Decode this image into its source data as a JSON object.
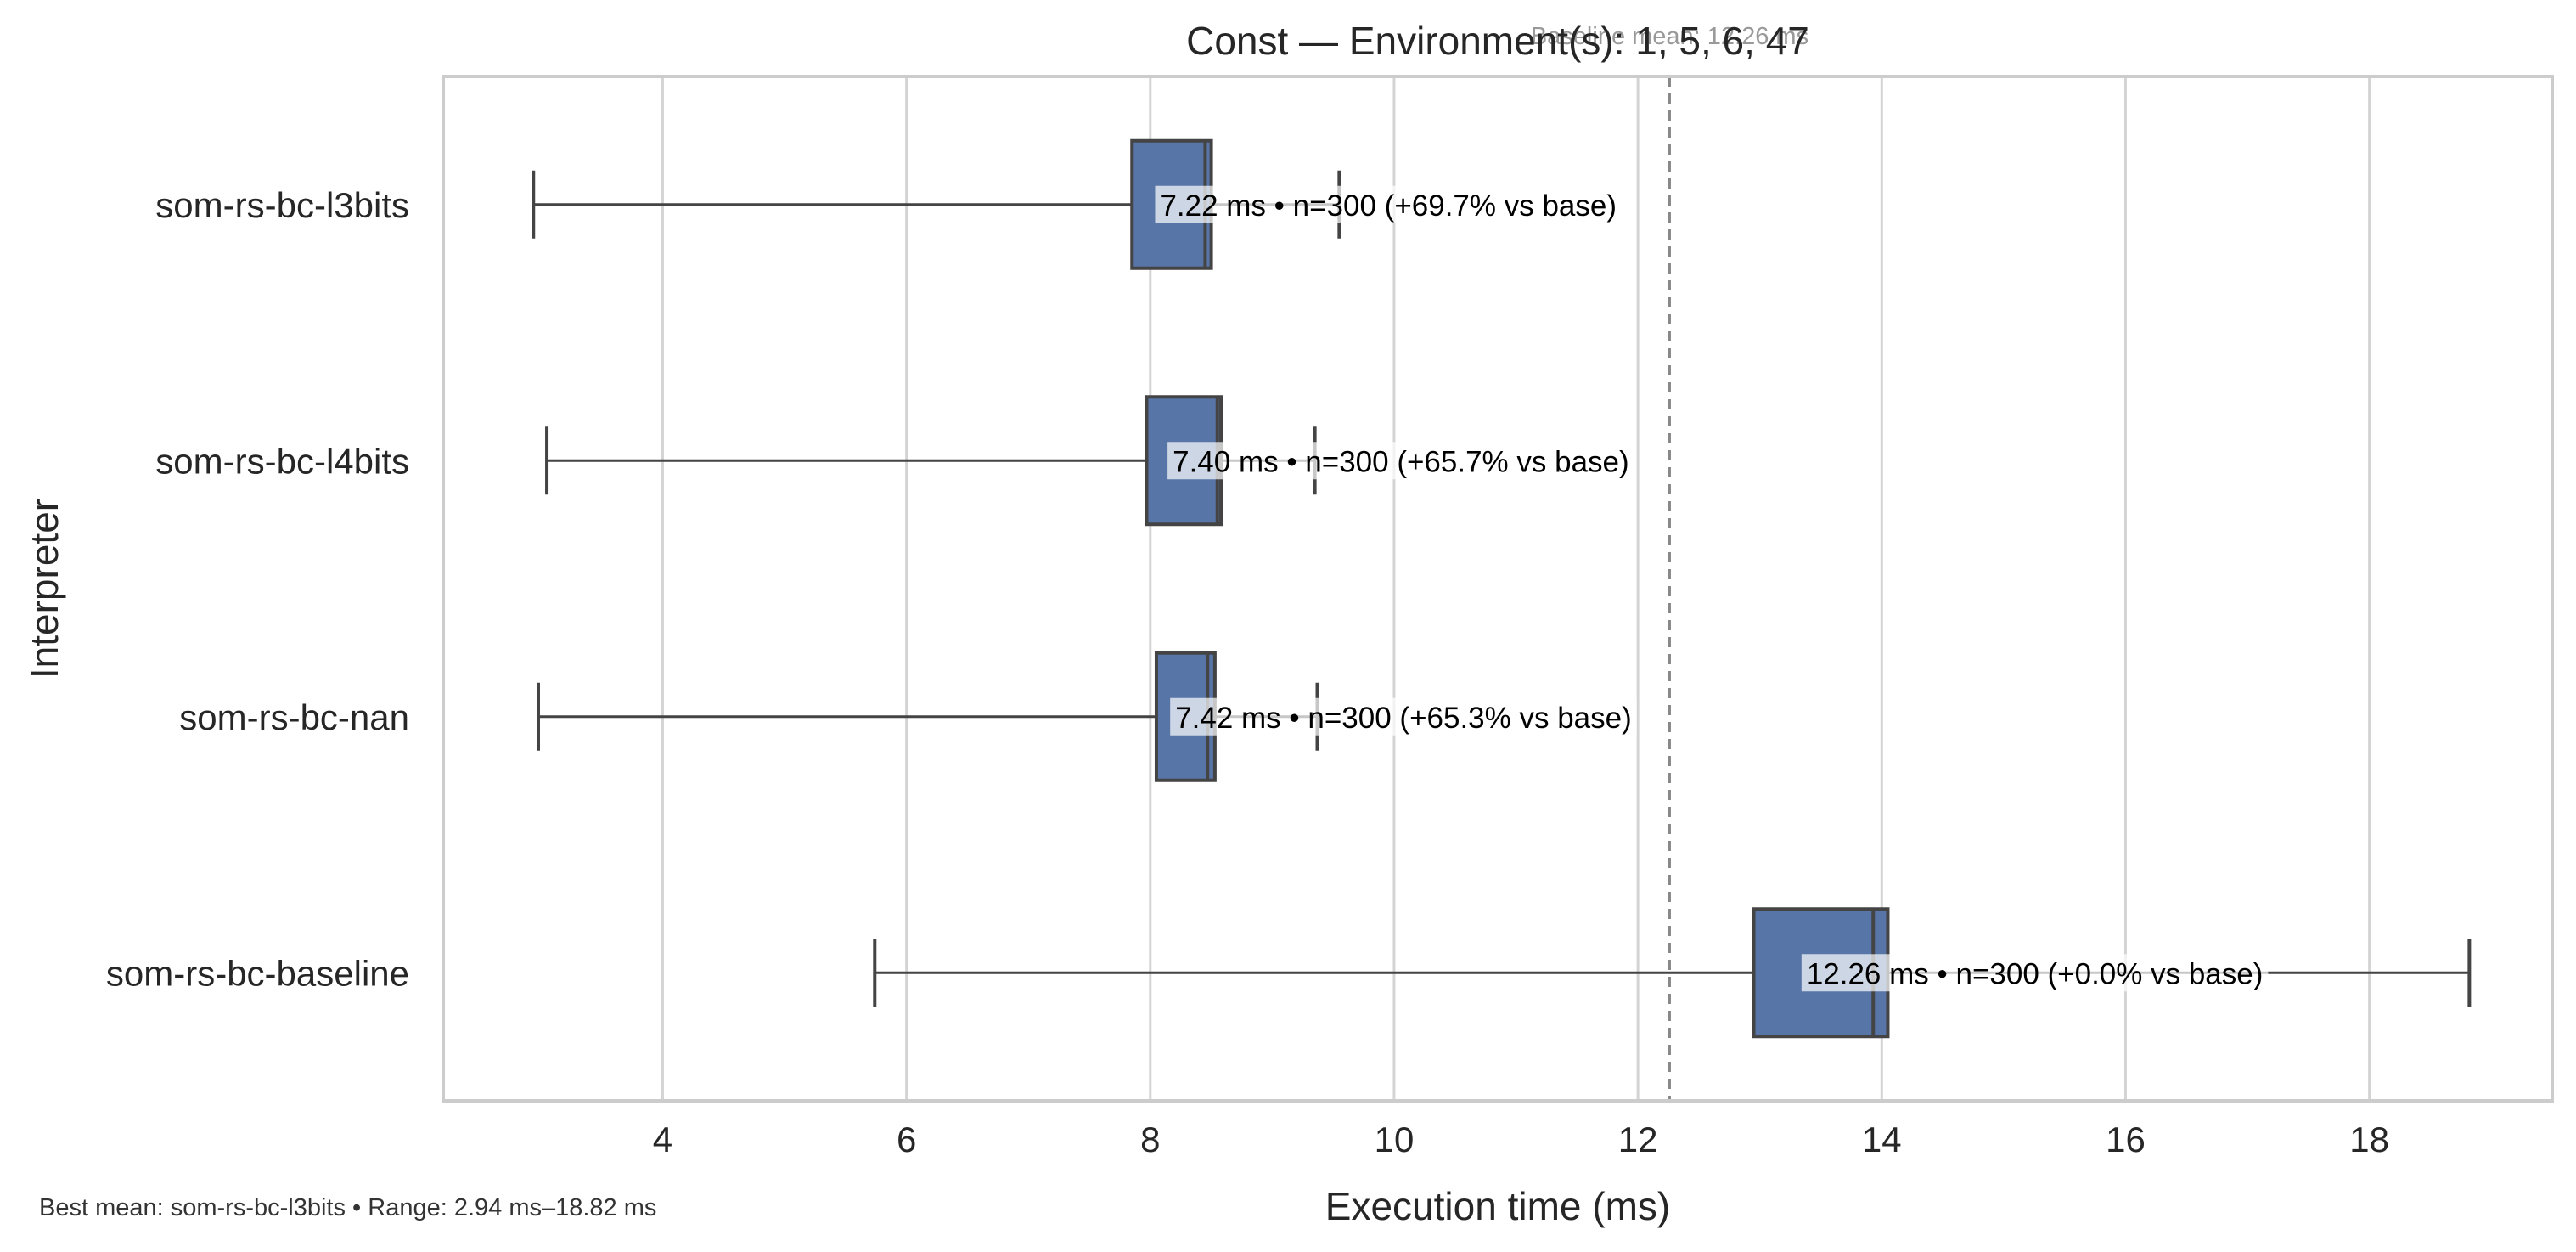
{
  "chart_data": {
    "type": "box",
    "orientation": "horizontal",
    "title": "Const — Environment(s): 1, 5, 6, 47",
    "xlabel": "Execution time (ms)",
    "ylabel": "Interpreter",
    "xlim": [
      2.2,
      19.5
    ],
    "xticks": [
      4,
      6,
      8,
      10,
      12,
      14,
      16,
      18
    ],
    "grid": "x",
    "categories": [
      "som-rs-bc-l3bits",
      "som-rs-bc-l4bits",
      "som-rs-bc-nan",
      "som-rs-bc-baseline"
    ],
    "series": [
      {
        "category": "som-rs-bc-l3bits",
        "whisker_low": 2.94,
        "q1": 7.85,
        "median": 8.45,
        "q3": 8.5,
        "whisker_high": 9.55,
        "mean": 7.22,
        "n": 300,
        "label": "7.22 ms • n=300 (+69.7% vs base)"
      },
      {
        "category": "som-rs-bc-l4bits",
        "whisker_low": 3.05,
        "q1": 7.97,
        "median": 8.55,
        "q3": 8.58,
        "whisker_high": 9.35,
        "mean": 7.4,
        "n": 300,
        "label": "7.40 ms • n=300 (+65.7% vs base)"
      },
      {
        "category": "som-rs-bc-nan",
        "whisker_low": 2.98,
        "q1": 8.05,
        "median": 8.47,
        "q3": 8.53,
        "whisker_high": 9.37,
        "mean": 7.42,
        "n": 300,
        "label": "7.42 ms • n=300 (+65.3% vs base)"
      },
      {
        "category": "som-rs-bc-baseline",
        "whisker_low": 5.74,
        "q1": 12.95,
        "median": 13.93,
        "q3": 14.05,
        "whisker_high": 18.82,
        "mean": 12.26,
        "n": 300,
        "label": "12.26 ms • n=300 (+0.0% vs base)"
      }
    ],
    "reference_line": {
      "x": 12.26,
      "label": "Baseline mean: 12.26 ms",
      "style": "dashed"
    },
    "colors": {
      "box": "#5875a8",
      "edge": "#444444",
      "grid": "#d4d4d4",
      "ref": "#888888"
    }
  },
  "footer": {
    "note": "Best mean: som-rs-bc-l3bits • Range: 2.94 ms–18.82 ms"
  }
}
